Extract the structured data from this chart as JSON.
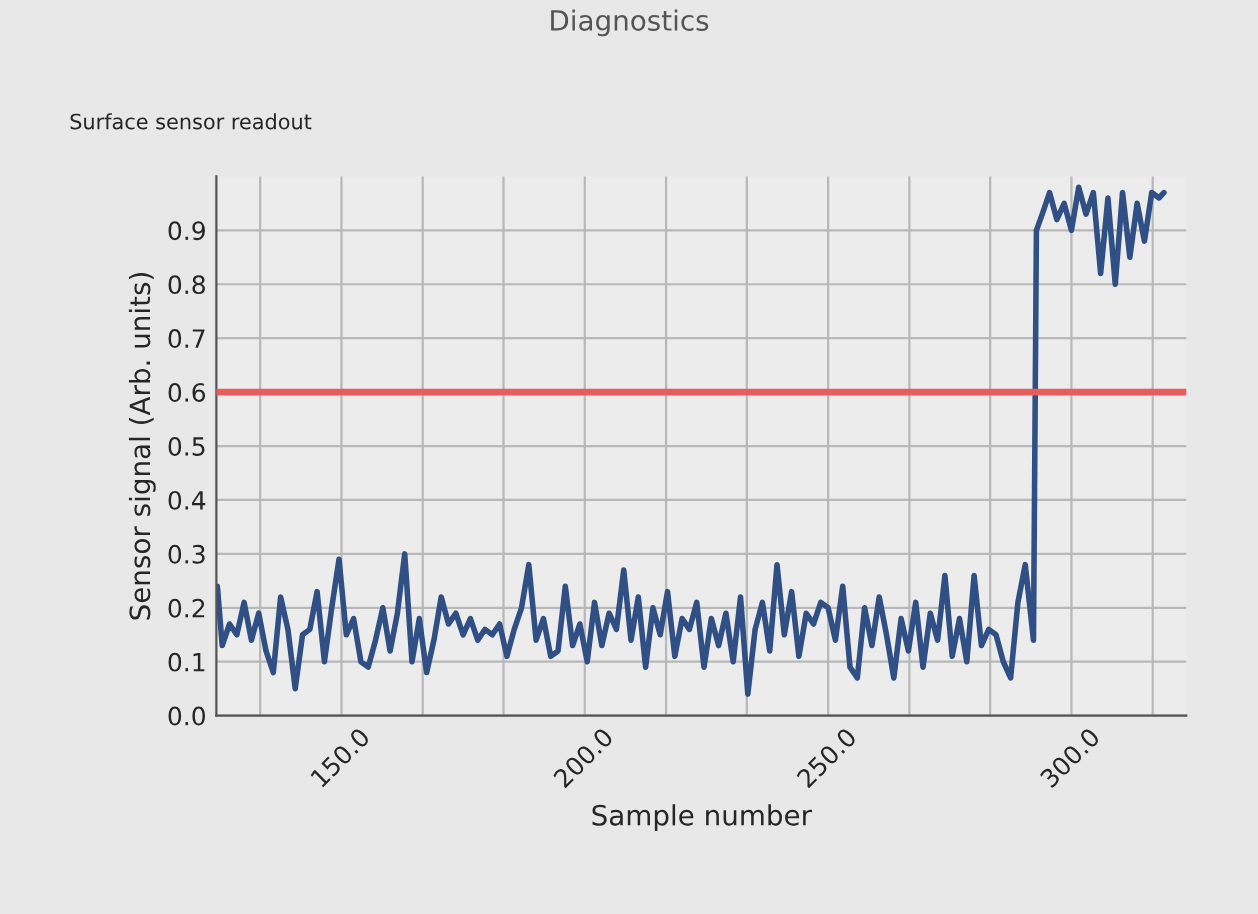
{
  "chart_data": {
    "type": "line",
    "title": "Surface sensor readout",
    "annotations": [
      "Diagnostics"
    ],
    "xlabel": "Sample number",
    "ylabel": "Sensor signal (Arb. units)",
    "x": [
      124.5,
      125.5,
      127,
      128.5,
      130,
      131.5,
      133,
      134.5,
      136,
      137.5,
      139,
      140.5,
      142,
      143.5,
      145,
      146.5,
      148,
      149.5,
      151,
      152.5,
      154,
      155.5,
      157,
      158.5,
      160,
      161.5,
      163,
      164.5,
      166,
      167.5,
      169,
      170.5,
      172,
      173.5,
      175,
      176.5,
      178,
      179.5,
      181,
      182.5,
      184,
      185.5,
      187,
      188.5,
      190,
      191.5,
      193,
      194.5,
      196,
      197.5,
      199,
      200.5,
      202,
      203.5,
      205,
      206.5,
      208,
      209.5,
      211,
      212.5,
      214,
      215.5,
      217,
      218.5,
      220,
      221.5,
      223,
      224.5,
      226,
      227.5,
      229,
      230.5,
      232,
      233.5,
      235,
      236.5,
      238,
      239.5,
      241,
      242.5,
      244,
      245.5,
      247,
      248.5,
      250,
      251.5,
      253,
      254.5,
      256,
      257.5,
      259,
      260.5,
      262,
      263.5,
      265,
      266.5,
      268,
      269.5,
      271,
      272.5,
      274,
      275.5,
      277,
      278.5,
      280,
      281.5,
      283,
      284.5,
      286,
      287.5,
      289,
      290.5,
      292.2,
      292.8,
      294,
      295.5,
      297,
      298.5,
      300,
      301.5,
      303,
      304.5,
      306,
      307.5,
      309,
      310.5,
      312,
      313.5,
      315,
      316.5,
      318,
      319
    ],
    "series": [
      {
        "color": "#2f4f85",
        "values": [
          0.24,
          0.13,
          0.17,
          0.15,
          0.21,
          0.14,
          0.19,
          0.12,
          0.08,
          0.22,
          0.16,
          0.05,
          0.15,
          0.16,
          0.23,
          0.1,
          0.2,
          0.29,
          0.15,
          0.18,
          0.1,
          0.09,
          0.14,
          0.2,
          0.12,
          0.19,
          0.3,
          0.1,
          0.18,
          0.08,
          0.14,
          0.22,
          0.17,
          0.19,
          0.15,
          0.18,
          0.14,
          0.16,
          0.15,
          0.17,
          0.11,
          0.16,
          0.2,
          0.28,
          0.14,
          0.18,
          0.11,
          0.12,
          0.24,
          0.13,
          0.17,
          0.1,
          0.21,
          0.13,
          0.19,
          0.16,
          0.27,
          0.14,
          0.22,
          0.09,
          0.2,
          0.15,
          0.23,
          0.11,
          0.18,
          0.16,
          0.21,
          0.09,
          0.18,
          0.13,
          0.19,
          0.1,
          0.22,
          0.04,
          0.16,
          0.21,
          0.12,
          0.28,
          0.15,
          0.23,
          0.11,
          0.19,
          0.17,
          0.21,
          0.2,
          0.14,
          0.24,
          0.09,
          0.07,
          0.2,
          0.13,
          0.22,
          0.15,
          0.07,
          0.18,
          0.12,
          0.21,
          0.09,
          0.19,
          0.14,
          0.26,
          0.11,
          0.18,
          0.1,
          0.26,
          0.13,
          0.16,
          0.15,
          0.1,
          0.07,
          0.21,
          0.28,
          0.14,
          0.9,
          0.93,
          0.97,
          0.92,
          0.95,
          0.9,
          0.98,
          0.93,
          0.97,
          0.82,
          0.96,
          0.8,
          0.97,
          0.85,
          0.95,
          0.88,
          0.97,
          0.96,
          0.97
        ]
      }
    ],
    "ref_lines": [
      {
        "axis": "y",
        "value": 0.6,
        "color": "#e85c5c"
      }
    ],
    "xlim": [
      124.3,
      323.6
    ],
    "ylim": [
      0,
      1.0
    ],
    "xticks": [
      {
        "value": 133.3,
        "label": null
      },
      {
        "value": 150,
        "label": "150.0"
      },
      {
        "value": 166.7,
        "label": null
      },
      {
        "value": 183.3,
        "label": null
      },
      {
        "value": 200,
        "label": "200.0"
      },
      {
        "value": 216.7,
        "label": null
      },
      {
        "value": 233.3,
        "label": null
      },
      {
        "value": 250,
        "label": "250.0"
      },
      {
        "value": 266.7,
        "label": null
      },
      {
        "value": 283.3,
        "label": null
      },
      {
        "value": 300,
        "label": "300.0"
      },
      {
        "value": 316.7,
        "label": null
      }
    ],
    "yticks": [
      {
        "value": 0,
        "label": "0.0"
      },
      {
        "value": 0.1,
        "label": "0.1"
      },
      {
        "value": 0.2,
        "label": "0.2"
      },
      {
        "value": 0.3,
        "label": "0.3"
      },
      {
        "value": 0.4,
        "label": "0.4"
      },
      {
        "value": 0.5,
        "label": "0.5"
      },
      {
        "value": 0.6,
        "label": "0.6"
      },
      {
        "value": 0.7,
        "label": "0.7"
      },
      {
        "value": 0.8,
        "label": "0.8"
      },
      {
        "value": 0.9,
        "label": "0.9"
      }
    ],
    "grid": true,
    "line_style": "solid"
  }
}
